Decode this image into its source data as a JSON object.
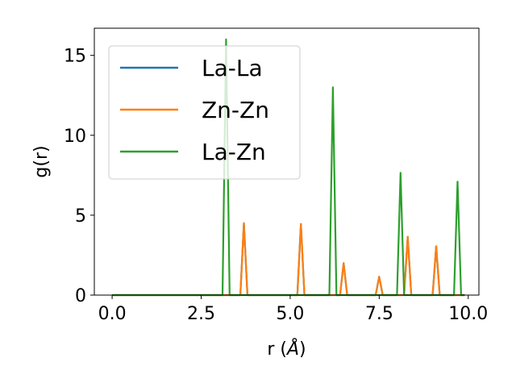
{
  "chart_data": {
    "type": "line",
    "xlabel": "r",
    "xlabel_unit": "Å",
    "ylabel": "g(r)",
    "xlim": [
      -0.5,
      10.3
    ],
    "ylim": [
      0,
      16.7
    ],
    "xticks": [
      0.0,
      2.5,
      5.0,
      7.5,
      10.0
    ],
    "xtick_labels": [
      "0.0",
      "2.5",
      "5.0",
      "7.5",
      "10.0"
    ],
    "yticks": [
      0,
      5,
      10,
      15
    ],
    "ytick_labels": [
      "0",
      "5",
      "10",
      "15"
    ],
    "grid": false,
    "legend_position": "top-left",
    "series": [
      {
        "name": "La-La",
        "color": "#1f77b4",
        "x": [
          0.0,
          3.6,
          3.7,
          3.8,
          5.2,
          5.3,
          5.4,
          6.4,
          6.5,
          6.6,
          7.4,
          7.5,
          7.6,
          8.2,
          8.3,
          8.4,
          9.0,
          9.1,
          9.2,
          9.9
        ],
        "y": [
          0,
          0,
          4.5,
          0,
          0,
          4.45,
          0,
          0,
          2.0,
          0,
          0,
          1.15,
          0,
          0,
          3.65,
          0,
          0,
          3.05,
          0,
          0
        ]
      },
      {
        "name": "Zn-Zn",
        "color": "#ff7f0e",
        "x": [
          0.0,
          3.6,
          3.7,
          3.8,
          5.2,
          5.3,
          5.4,
          6.4,
          6.5,
          6.6,
          7.4,
          7.5,
          7.6,
          8.2,
          8.3,
          8.4,
          9.0,
          9.1,
          9.2,
          9.9
        ],
        "y": [
          0,
          0,
          4.5,
          0,
          0,
          4.45,
          0,
          0,
          2.0,
          0,
          0,
          1.15,
          0,
          0,
          3.65,
          0,
          0,
          3.05,
          0,
          0
        ]
      },
      {
        "name": "La-Zn",
        "color": "#2ca02c",
        "x": [
          0.0,
          3.1,
          3.2,
          3.3,
          6.1,
          6.2,
          6.3,
          8.0,
          8.1,
          8.2,
          9.6,
          9.7,
          9.8,
          9.9
        ],
        "y": [
          0,
          0,
          16.0,
          0,
          0,
          13.0,
          0,
          0,
          7.65,
          0,
          0,
          7.1,
          0,
          0
        ]
      }
    ]
  }
}
